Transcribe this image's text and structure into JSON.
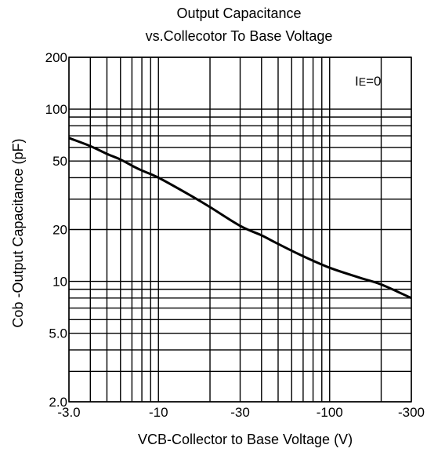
{
  "chart_data": {
    "type": "line",
    "title": [
      "Output Capacitance",
      "vs.Collecotor To Base Voltage"
    ],
    "xlabel": "VCB-Collector to Base Voltage  (V)",
    "ylabel": "Cob -Output Capacitance  (pF)",
    "annotation": {
      "main": "I",
      "sub": "E",
      "rest": "=0"
    },
    "x_scale": "log",
    "y_scale": "log",
    "xlim": [
      -3,
      -300
    ],
    "ylim": [
      2,
      200
    ],
    "grid": true,
    "x_ticks": [
      {
        "value": -3,
        "label": "-3.0"
      },
      {
        "value": -10,
        "label": "-10"
      },
      {
        "value": -30,
        "label": "-30"
      },
      {
        "value": -100,
        "label": "-100"
      },
      {
        "value": -300,
        "label": "-300"
      }
    ],
    "y_ticks": [
      {
        "value": 2,
        "label": "2.0"
      },
      {
        "value": 5,
        "label": "5.0"
      },
      {
        "value": 10,
        "label": "10"
      },
      {
        "value": 20,
        "label": "20"
      },
      {
        "value": 50,
        "label": "50"
      },
      {
        "value": 100,
        "label": "100"
      },
      {
        "value": 200,
        "label": "200"
      }
    ],
    "x_grid": [
      -3,
      -4,
      -5,
      -6,
      -7,
      -8,
      -9,
      -10,
      -20,
      -30,
      -40,
      -50,
      -60,
      -70,
      -80,
      -90,
      -100,
      -200,
      -300
    ],
    "y_grid": [
      2,
      3,
      4,
      5,
      6,
      7,
      8,
      9,
      10,
      20,
      30,
      40,
      50,
      60,
      70,
      80,
      90,
      100,
      200
    ],
    "series": [
      {
        "x": [
          -3,
          -4,
          -5,
          -6,
          -7,
          -8,
          -10,
          -15,
          -20,
          -30,
          -40,
          -50,
          -70,
          -100,
          -150,
          -200,
          -300
        ],
        "y": [
          68,
          61,
          55,
          51,
          47,
          44,
          40,
          32,
          27,
          21,
          18.5,
          16.5,
          14,
          12,
          10.5,
          9.6,
          8.0
        ]
      }
    ]
  }
}
